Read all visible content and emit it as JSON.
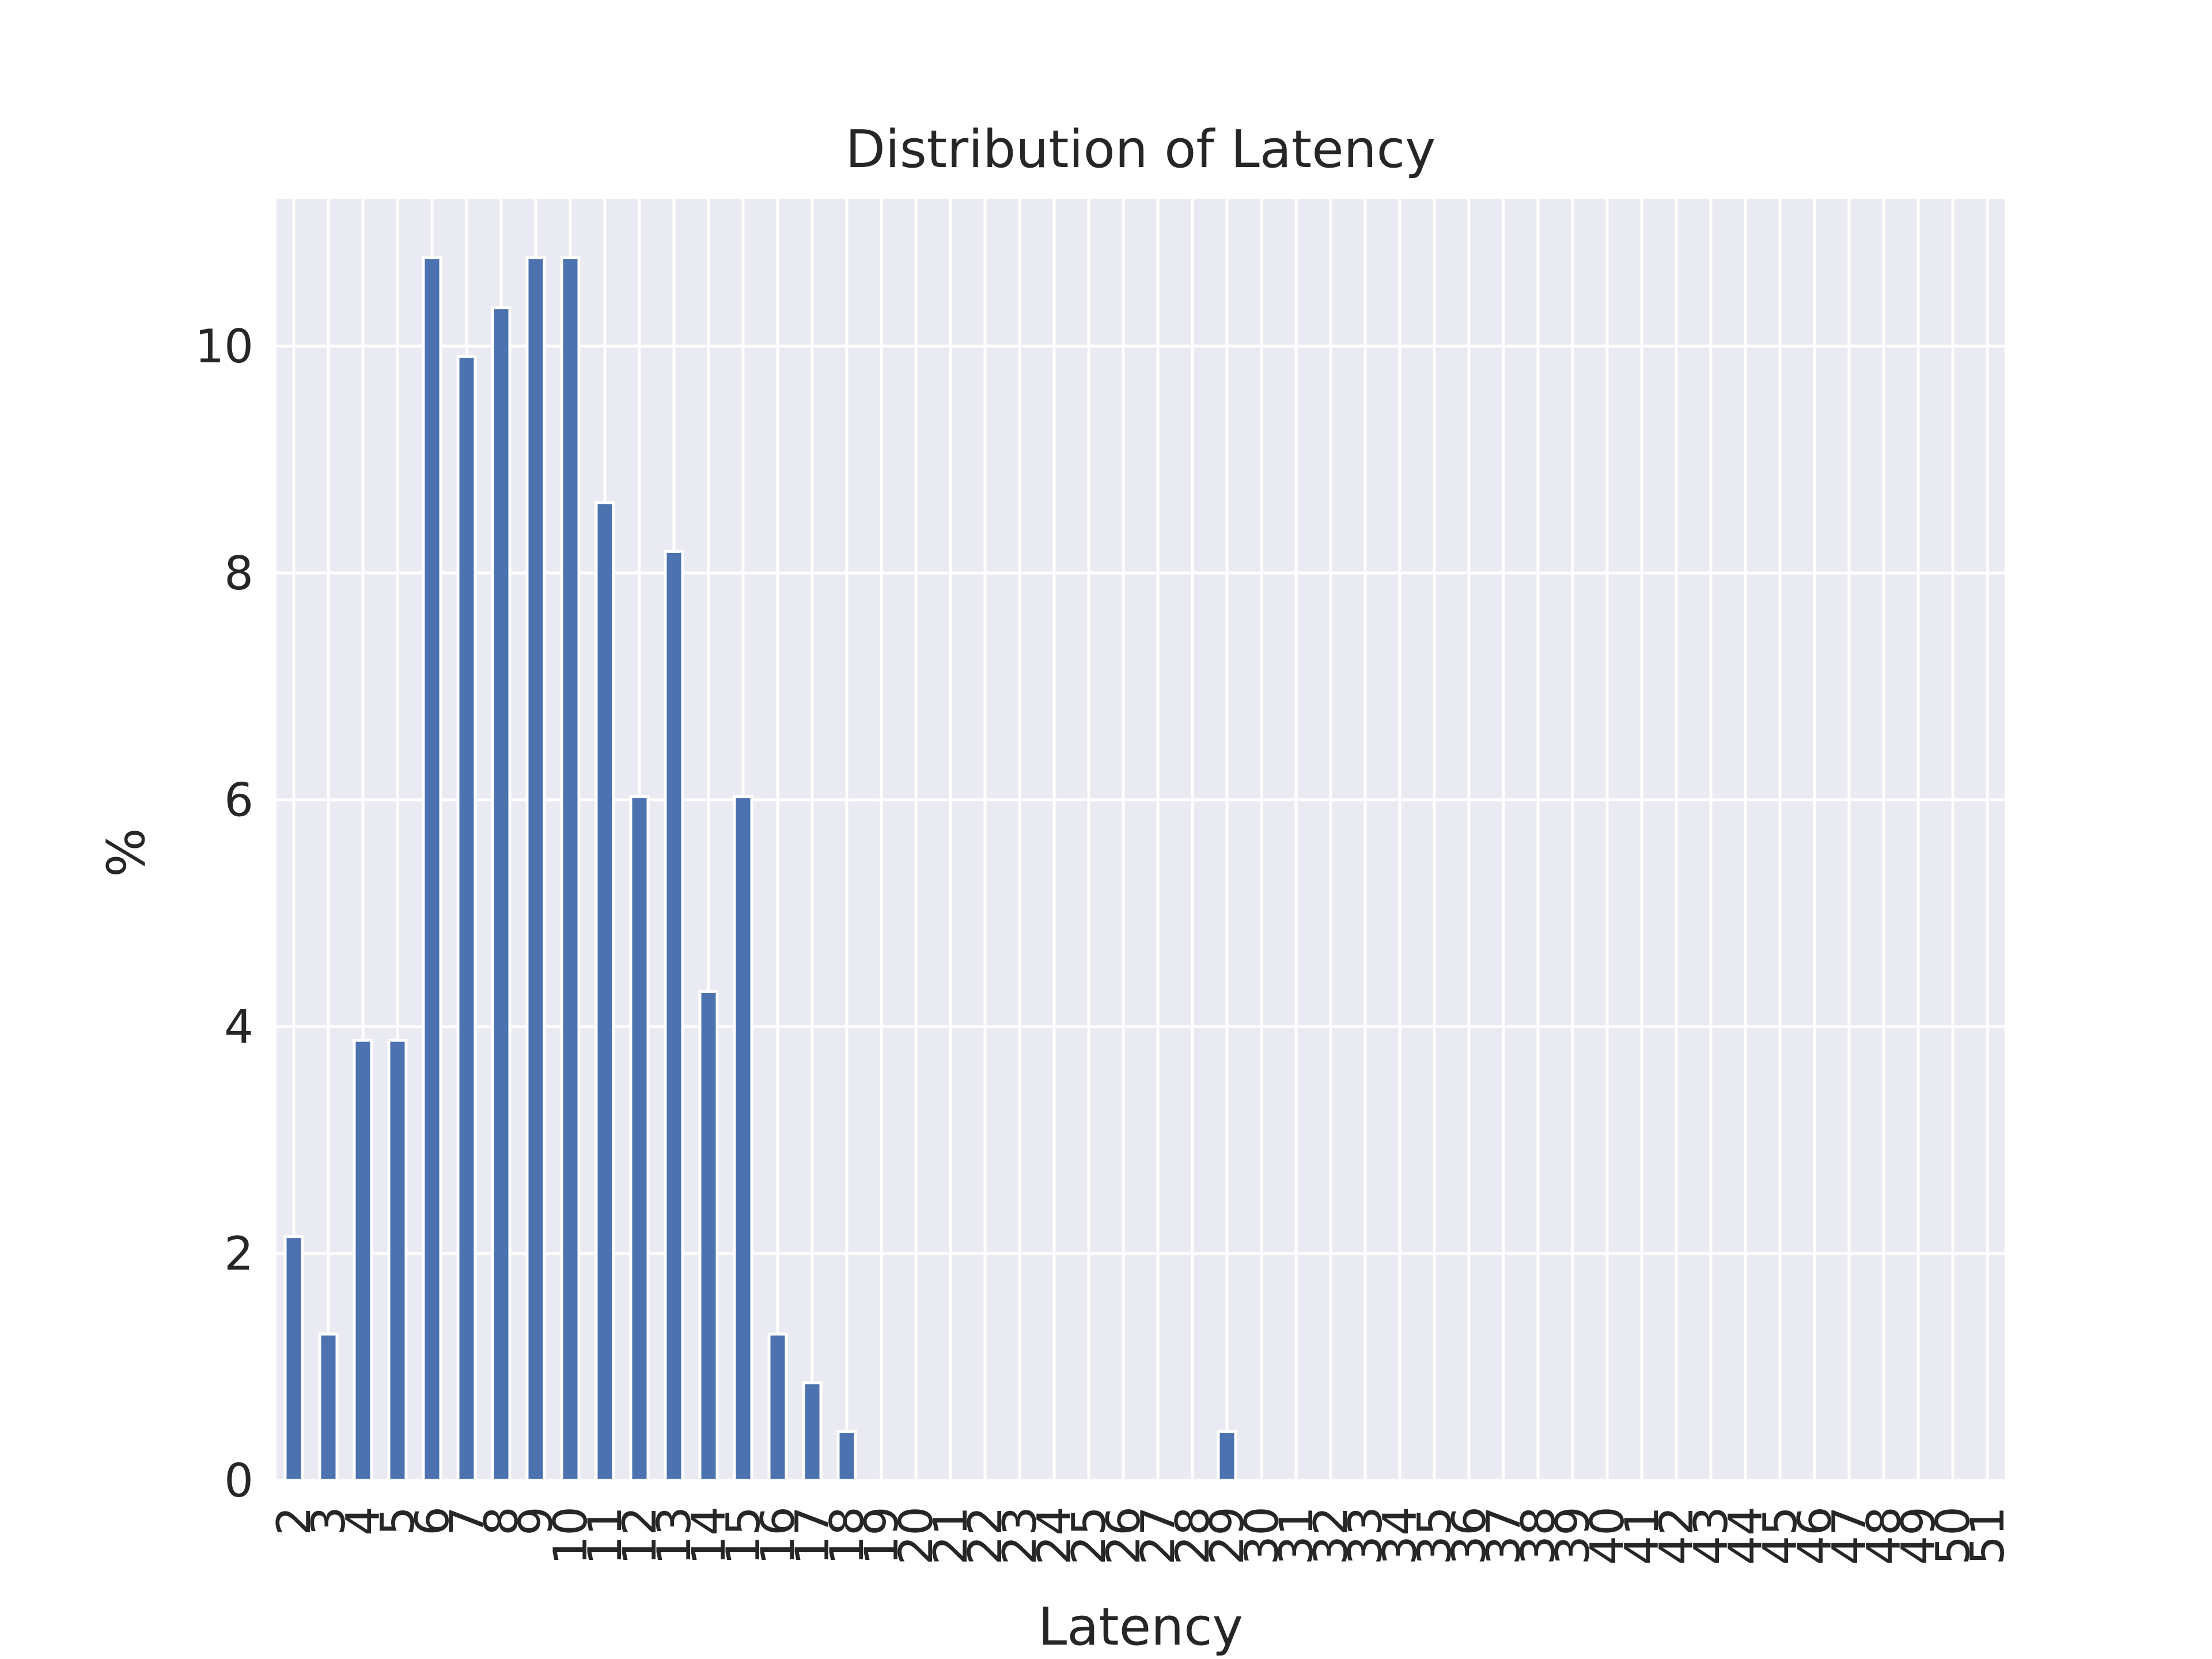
{
  "chart_data": {
    "type": "bar",
    "title": "Distribution of Latency",
    "xlabel": "Latency",
    "ylabel": "%",
    "categories": [
      "2",
      "3",
      "4",
      "5",
      "6",
      "7",
      "8",
      "9",
      "10",
      "11",
      "12",
      "13",
      "14",
      "15",
      "16",
      "17",
      "18",
      "19",
      "20",
      "21",
      "22",
      "23",
      "24",
      "25",
      "26",
      "27",
      "28",
      "29",
      "30",
      "31",
      "32",
      "33",
      "34",
      "35",
      "36",
      "37",
      "38",
      "39",
      "40",
      "41",
      "42",
      "43",
      "44",
      "45",
      "46",
      "47",
      "48",
      "49",
      "50",
      "51"
    ],
    "values": [
      2.15,
      1.29,
      3.88,
      3.88,
      10.78,
      9.91,
      10.34,
      10.78,
      10.78,
      8.62,
      6.03,
      8.19,
      4.31,
      6.03,
      1.29,
      0.86,
      0.43,
      0,
      0,
      0,
      0,
      0,
      0,
      0,
      0,
      0,
      0,
      0.43,
      0,
      0,
      0,
      0,
      0,
      0,
      0,
      0,
      0,
      0,
      0,
      0,
      0,
      0,
      0,
      0,
      0,
      0,
      0,
      0,
      0,
      0
    ],
    "ylim": [
      0,
      11.3
    ],
    "yticks": [
      0,
      2,
      4,
      6,
      8,
      10
    ],
    "grid": true,
    "legend": "none",
    "colors": {
      "bar": "#4c72b0",
      "background": "#eaeaf2",
      "grid": "#ffffff"
    }
  }
}
